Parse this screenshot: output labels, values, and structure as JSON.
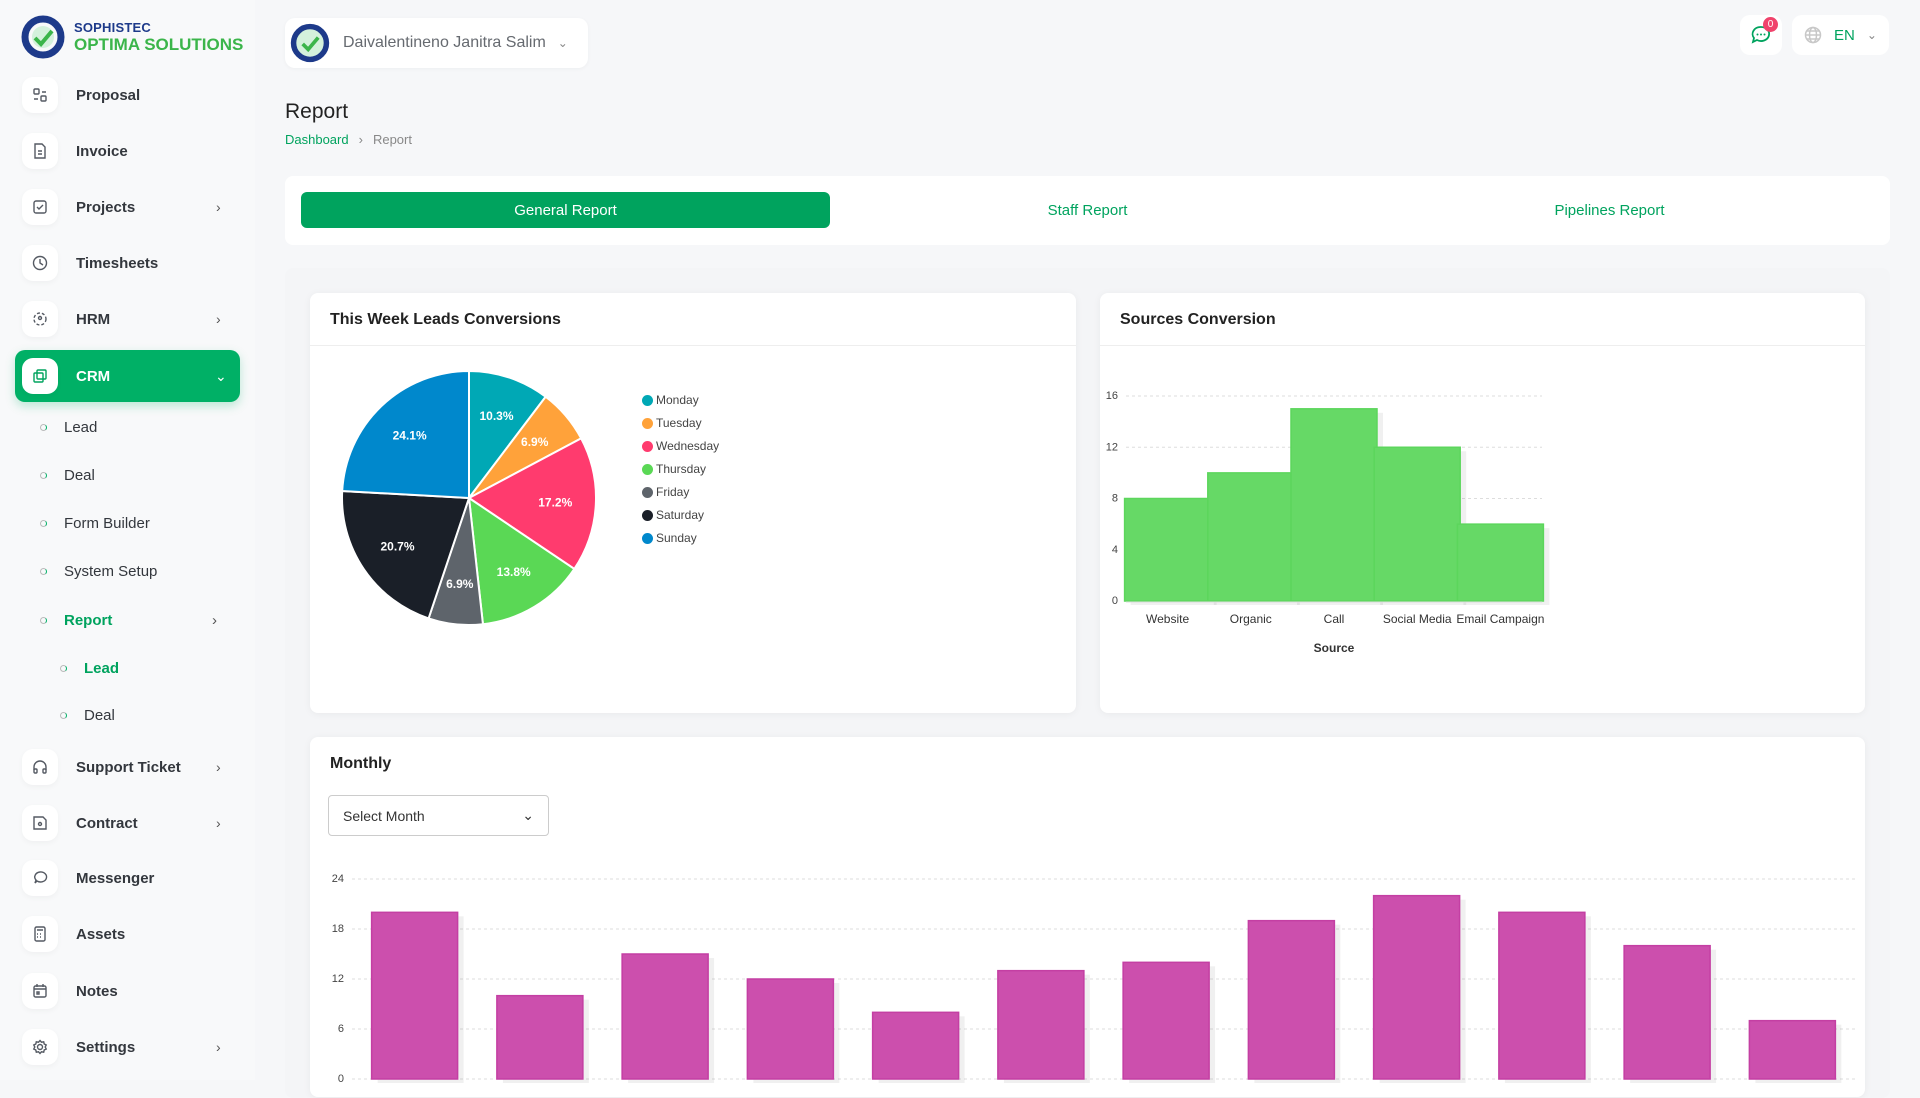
{
  "brand": {
    "line1": "SOPHISTEC",
    "line2": "OPTIMA SOLUTIONS"
  },
  "header": {
    "user_name": "Daivalentineno Janitra Salim",
    "notification_count": "0",
    "language": "EN"
  },
  "sidebar": {
    "items": [
      {
        "label": "Proposal",
        "icon": "proposal-icon",
        "chevron": false
      },
      {
        "label": "Invoice",
        "icon": "invoice-icon",
        "chevron": false
      },
      {
        "label": "Projects",
        "icon": "projects-icon",
        "chevron": true
      },
      {
        "label": "Timesheets",
        "icon": "clock-icon",
        "chevron": false
      },
      {
        "label": "HRM",
        "icon": "hrm-icon",
        "chevron": true
      },
      {
        "label": "CRM",
        "icon": "crm-icon",
        "chevron": true,
        "active": true
      }
    ],
    "crm_sub": [
      {
        "label": "Lead"
      },
      {
        "label": "Deal"
      },
      {
        "label": "Form Builder"
      },
      {
        "label": "System Setup"
      },
      {
        "label": "Report",
        "active": true
      }
    ],
    "report_sub": [
      {
        "label": "Lead",
        "active": true
      },
      {
        "label": "Deal"
      }
    ],
    "items_bottom": [
      {
        "label": "Support Ticket",
        "icon": "headphones-icon",
        "chevron": true
      },
      {
        "label": "Contract",
        "icon": "contract-icon",
        "chevron": true
      },
      {
        "label": "Messenger",
        "icon": "messenger-icon",
        "chevron": false
      },
      {
        "label": "Assets",
        "icon": "calculator-icon",
        "chevron": false
      },
      {
        "label": "Notes",
        "icon": "calendar-icon",
        "chevron": false
      },
      {
        "label": "Settings",
        "icon": "gear-icon",
        "chevron": true
      }
    ]
  },
  "page": {
    "title": "Report",
    "breadcrumb": [
      "Dashboard",
      "Report"
    ]
  },
  "tabs": [
    {
      "label": "General Report",
      "active": true
    },
    {
      "label": "Staff Report"
    },
    {
      "label": "Pipelines Report"
    }
  ],
  "colors": {
    "accent": "#00a35e",
    "sources_bar": "#66d966",
    "monthly_bar": "#cc4fad"
  },
  "monthly": {
    "title": "Monthly",
    "select": "Select Month"
  },
  "chart_data": [
    {
      "type": "pie",
      "title": "This Week Leads Conversions",
      "legend_position": "right",
      "categories": [
        "Monday",
        "Tuesday",
        "Wednesday",
        "Thursday",
        "Friday",
        "Saturday",
        "Sunday"
      ],
      "values": [
        10.3,
        6.9,
        17.2,
        13.8,
        6.9,
        20.7,
        24.1
      ],
      "labels": [
        "10.3%",
        "6.9%",
        "17.2%",
        "13.8%",
        "6.9%",
        "20.7%",
        "24.1%"
      ],
      "colors": [
        "#00a8b5",
        "#ffa23a",
        "#ff3b6e",
        "#5ad855",
        "#5e646b",
        "#1a1f28",
        "#0088cc"
      ]
    },
    {
      "type": "bar",
      "title": "Sources Conversion",
      "xlabel": "Source",
      "ylabel": "",
      "categories": [
        "Website",
        "Organic",
        "Call",
        "Social Media",
        "Email Campaign"
      ],
      "values": [
        8,
        10,
        15,
        12,
        6
      ],
      "ylim": [
        0,
        16
      ],
      "yticks": [
        "0",
        "4",
        "8",
        "12",
        "16"
      ],
      "grid": true
    },
    {
      "type": "bar",
      "title": "Monthly",
      "xlabel": "",
      "ylabel": "",
      "values": [
        20,
        10,
        15,
        12,
        8,
        13,
        14,
        19,
        22,
        20,
        16,
        7
      ],
      "ylim": [
        0,
        24
      ],
      "yticks": [
        "0",
        "6",
        "12",
        "18",
        "24"
      ],
      "grid": true
    }
  ]
}
